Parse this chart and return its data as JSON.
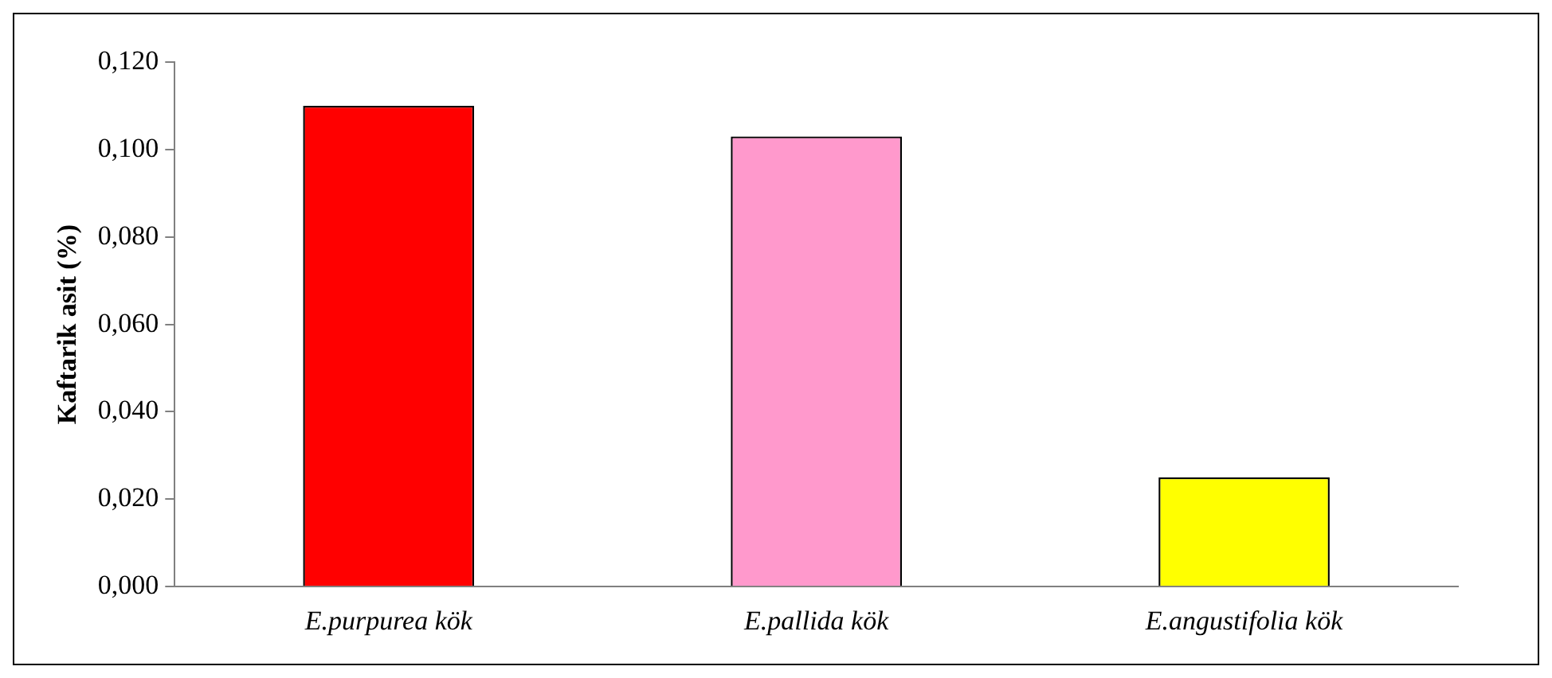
{
  "chart_data": {
    "type": "bar",
    "ylabel": "Kaftarik asit (%)",
    "categories": [
      "E.purpurea kök",
      "E.pallida kök",
      "E.angustifolia kök"
    ],
    "values": [
      0.11,
      0.103,
      0.025
    ],
    "colors": [
      "#ff0000",
      "#ff99cc",
      "#ffff00"
    ],
    "ylim": [
      0,
      0.12
    ],
    "yticks": [
      {
        "value": 0,
        "label": "0,000"
      },
      {
        "value": 0.02,
        "label": "0,020"
      },
      {
        "value": 0.04,
        "label": "0,040"
      },
      {
        "value": 0.06,
        "label": "0,060"
      },
      {
        "value": 0.08,
        "label": "0,080"
      },
      {
        "value": 0.1,
        "label": "0,100"
      },
      {
        "value": 0.12,
        "label": "0,120"
      }
    ],
    "grid": false,
    "legend": false
  }
}
